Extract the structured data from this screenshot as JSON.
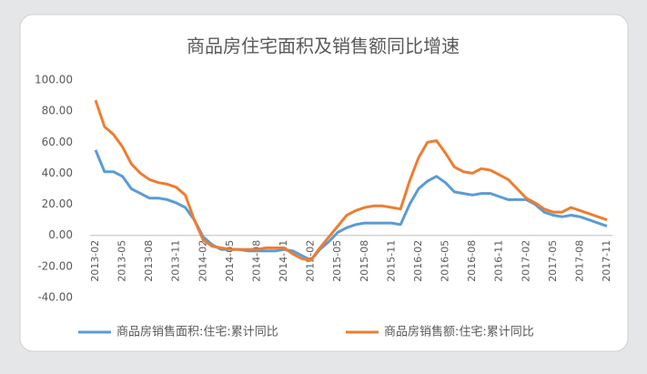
{
  "chart_data": {
    "type": "line",
    "title": "商品房住宅面积及销售额同比增速",
    "categories": [
      "2013-02",
      null,
      null,
      "2013-05",
      null,
      null,
      "2013-08",
      null,
      null,
      "2013-11",
      null,
      null,
      "2014-02",
      null,
      null,
      "2014-05",
      null,
      null,
      "2014-08",
      null,
      null,
      "2014-11",
      null,
      null,
      "2015-02",
      null,
      null,
      "2015-05",
      null,
      null,
      "2015-08",
      null,
      null,
      "2015-11",
      null,
      null,
      "2016-02",
      null,
      null,
      "2016-05",
      null,
      null,
      "2016-08",
      null,
      null,
      "2016-11",
      null,
      null,
      "2017-02",
      null,
      null,
      "2017-05",
      null,
      null,
      "2017-08",
      null,
      null,
      "2017-11"
    ],
    "series": [
      {
        "name": "商品房销售面积:住宅:累计同比",
        "color": "#5b9bd5",
        "values": [
          55,
          41,
          41,
          38,
          30,
          27,
          24,
          24,
          23,
          21,
          18,
          10,
          -1,
          -6,
          -9,
          -9,
          -9,
          -10,
          -10,
          -10,
          -10,
          -9,
          -10,
          -13,
          -16,
          -9,
          -4,
          2,
          5,
          7,
          8,
          8,
          8,
          8,
          7,
          20,
          30,
          35,
          38,
          34,
          28,
          27,
          26,
          27,
          27,
          25,
          23,
          23,
          23,
          20,
          15,
          13,
          12,
          13,
          12,
          10,
          8,
          6
        ]
      },
      {
        "name": "商品房销售额:住宅:累计同比",
        "color": "#ed7d31",
        "values": [
          87,
          70,
          65,
          57,
          46,
          40,
          36,
          34,
          33,
          31,
          26,
          10,
          -3,
          -7,
          -8,
          -9,
          -9,
          -9,
          -9,
          -8,
          -8,
          -8,
          -12,
          -15,
          -16,
          -8,
          -1,
          6,
          13,
          16,
          18,
          19,
          19,
          18,
          17,
          35,
          50,
          60,
          61,
          53,
          44,
          41,
          40,
          43,
          42,
          39,
          36,
          30,
          24,
          21,
          17,
          15,
          15,
          18,
          16,
          14,
          12,
          10
        ]
      }
    ],
    "ylim": [
      -40,
      100
    ],
    "yticks": [
      {
        "value": -40,
        "label": "-40.00"
      },
      {
        "value": -20,
        "label": "-20.00"
      },
      {
        "value": 0,
        "label": "0.00"
      },
      {
        "value": 20,
        "label": "20.00"
      },
      {
        "value": 40,
        "label": "40.00"
      },
      {
        "value": 60,
        "label": "60.00"
      },
      {
        "value": 80,
        "label": "80.00"
      },
      {
        "value": 100,
        "label": "100.00"
      }
    ],
    "grid": false,
    "legend": "bottom"
  }
}
